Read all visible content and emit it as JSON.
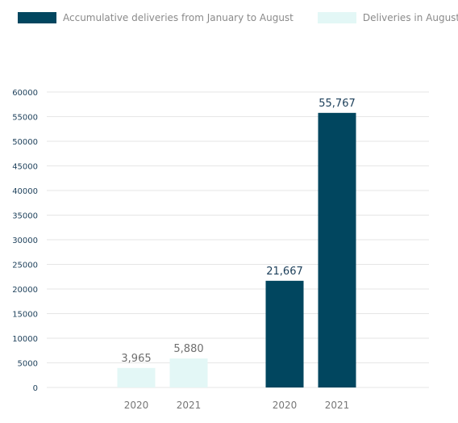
{
  "chart_data": {
    "type": "bar",
    "groups": [
      {
        "categories": [
          "2020",
          "2021"
        ],
        "series": "Deliveries in August",
        "values": [
          3965,
          5880
        ],
        "labels": [
          "3,965",
          "5,880"
        ]
      },
      {
        "categories": [
          "2020",
          "2021"
        ],
        "series": "Accumulative deliveries from January to August",
        "values": [
          21667,
          55767
        ],
        "labels": [
          "21,667",
          "55,767"
        ]
      }
    ],
    "legend": [
      {
        "name": "Accumulative deliveries from January to August",
        "color": "#01465f"
      },
      {
        "name": "Deliveries in August",
        "color": "#e3f7f6"
      }
    ],
    "yticks": [
      "0",
      "5000",
      "10000",
      "15000",
      "20000",
      "25000",
      "30000",
      "35000",
      "40000",
      "45000",
      "50000",
      "55000",
      "60000"
    ],
    "ylim": [
      0,
      60000
    ],
    "grid": true,
    "legend_position": "top-left",
    "colors": {
      "dark": "#01465f",
      "light": "#e3f7f6",
      "grid": "#e6e6e6",
      "dark_label": "#1c3f5a",
      "light_label": "#6e6e6e"
    }
  }
}
